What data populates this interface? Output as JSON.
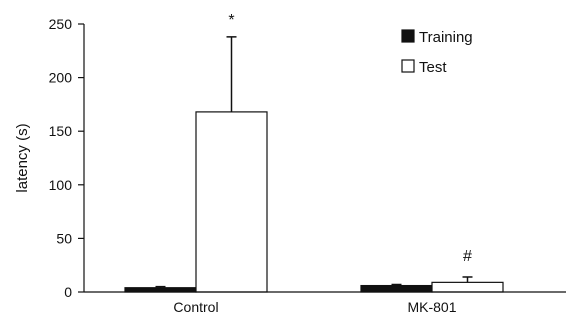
{
  "chart_data": {
    "type": "bar",
    "title": "",
    "xlabel": "",
    "ylabel": "latency (s)",
    "ylim": [
      0,
      250
    ],
    "yticks": [
      0,
      50,
      100,
      150,
      200,
      250
    ],
    "grid": false,
    "legend_position": "top-right",
    "categories": [
      "Control",
      "MK-801"
    ],
    "series": [
      {
        "name": "Training",
        "values": [
          4,
          6
        ],
        "errors": [
          1,
          1
        ],
        "color": "#111111"
      },
      {
        "name": "Test",
        "values": [
          168,
          9
        ],
        "errors": [
          70,
          5
        ],
        "color": "#ffffff"
      }
    ],
    "annotations": [
      {
        "text": "*",
        "category": "Control",
        "series": "Test"
      },
      {
        "text": "#",
        "category": "MK-801",
        "series": "Test"
      }
    ]
  }
}
